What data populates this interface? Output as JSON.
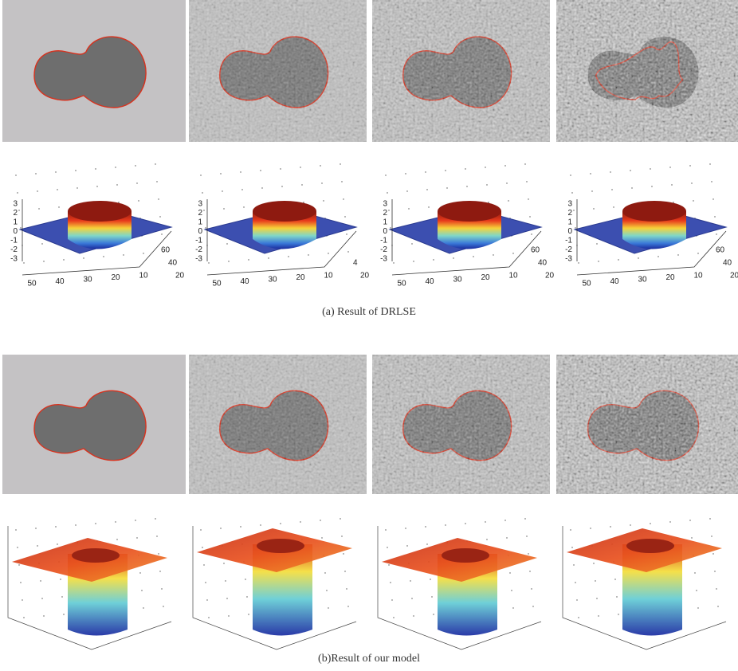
{
  "row_a": {
    "surface_plots": [
      {
        "z_ticks": [
          3,
          2,
          1,
          0,
          -1,
          -2,
          -3
        ],
        "x_ticks": [
          50,
          40,
          30,
          20,
          10
        ],
        "y_ticks": [
          60,
          40,
          20
        ]
      },
      {
        "z_ticks": [
          3,
          2,
          1,
          0,
          -1,
          -2,
          -3
        ],
        "x_ticks": [
          50,
          40,
          30,
          20,
          10
        ],
        "y_ticks": [
          4,
          20
        ]
      },
      {
        "z_ticks": [
          3,
          2,
          1,
          0,
          -1,
          -2,
          -3
        ],
        "x_ticks": [
          50,
          40,
          30,
          20,
          10
        ],
        "y_ticks": [
          60,
          40,
          20
        ]
      },
      {
        "z_ticks": [
          3,
          2,
          1,
          0,
          -1,
          -2,
          -3
        ],
        "x_ticks": [
          50,
          40,
          30,
          20,
          10
        ],
        "y_ticks": [
          60,
          40,
          20
        ]
      }
    ]
  },
  "caption_a": "(a) Result of DRLSE",
  "caption_b": "(b)Result of our model"
}
